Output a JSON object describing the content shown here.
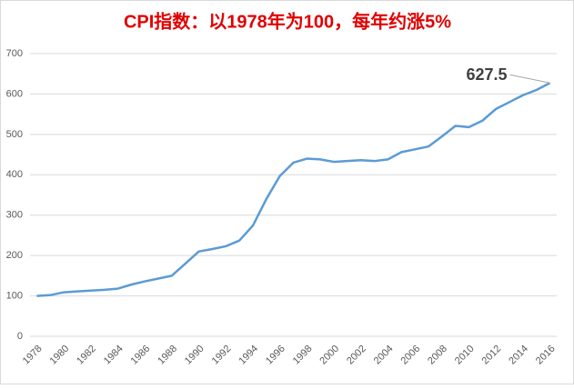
{
  "chart_data": {
    "type": "line",
    "title": "CPI指数：以1978年为100，每年约涨5%",
    "categories": [
      "1978",
      null,
      "1980",
      null,
      "1982",
      null,
      "1984",
      null,
      "1986",
      null,
      "1988",
      null,
      "1990",
      null,
      "1992",
      null,
      "1994",
      null,
      "1996",
      null,
      "1998",
      null,
      "2000",
      null,
      "2002",
      null,
      "2004",
      null,
      "2006",
      null,
      "2008",
      null,
      "2010",
      null,
      "2012",
      null,
      "2014",
      null,
      "2016"
    ],
    "series": [
      {
        "name": "CPI",
        "color": "#5b9bd5",
        "values": [
          100,
          102,
          109,
          111,
          113,
          115,
          118,
          128,
          136,
          143,
          150,
          180,
          210,
          216,
          223,
          237,
          274,
          340,
          397,
          430,
          440,
          438,
          432,
          434,
          436,
          434,
          438,
          456,
          463,
          470,
          495,
          521,
          518,
          534,
          563,
          580,
          597,
          610,
          627.5
        ],
        "value_labels": [
          null,
          null,
          null,
          null,
          null,
          null,
          null,
          null,
          null,
          null,
          null,
          null,
          null,
          null,
          null,
          null,
          null,
          null,
          null,
          null,
          null,
          null,
          null,
          null,
          null,
          null,
          null,
          null,
          null,
          null,
          null,
          null,
          null,
          null,
          null,
          null,
          null,
          null,
          "627.5"
        ]
      }
    ],
    "ylim": [
      0,
      700
    ],
    "yticks": [
      0,
      100,
      200,
      300,
      400,
      500,
      600,
      700
    ],
    "grid": true
  }
}
